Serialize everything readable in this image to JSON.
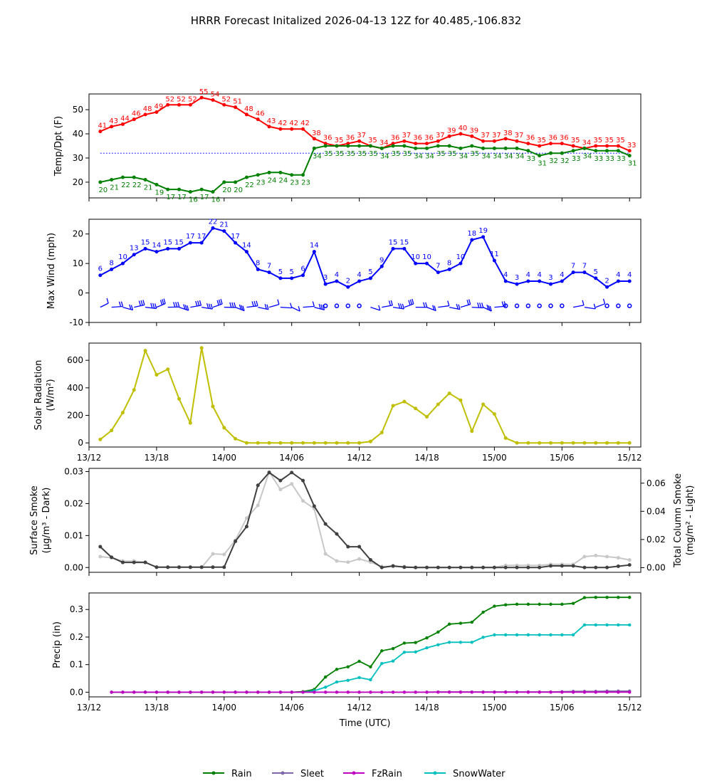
{
  "title": "HRRR Forecast Initalized 2026-04-13 12Z for 40.485,-106.832",
  "x_label": "Time (UTC)",
  "x_ticks": [
    "13/12",
    "13/18",
    "14/00",
    "14/06",
    "14/12",
    "14/18",
    "15/00",
    "15/06",
    "15/12"
  ],
  "colors": {
    "temp": "#ff0000",
    "dewpoint": "#008000",
    "freezing_line": "#0000ff",
    "wind": "#0000ff",
    "solar": "#bfbf00",
    "smoke_surface": "#404040",
    "smoke_column": "#c8c8c8",
    "rain": "#008000",
    "sleet": "#8068a8",
    "fzrain": "#c000c0",
    "snowwater": "#00bfbf"
  },
  "chart_data": [
    {
      "type": "line",
      "id": "temp",
      "ylabel": "Temp/Dpt (F)",
      "x_hours": [
        1,
        2,
        3,
        4,
        5,
        6,
        7,
        8,
        9,
        10,
        11,
        12,
        13,
        14,
        15,
        16,
        17,
        18,
        19,
        20,
        21,
        22,
        23,
        24,
        25,
        26,
        27,
        28,
        29,
        30,
        31,
        32,
        33,
        34,
        35,
        36,
        37,
        38,
        39,
        40,
        41,
        42,
        43,
        44,
        45,
        46,
        47,
        48
      ],
      "ylim": [
        13.5,
        56.5
      ],
      "yticks": [
        20,
        30,
        40,
        50
      ],
      "freezing_line": 32,
      "series": [
        {
          "name": "Temperature",
          "values": [
            41,
            43,
            44,
            46,
            48,
            49,
            52,
            52,
            52,
            55,
            54,
            52,
            51,
            48,
            46,
            43,
            42,
            42,
            42,
            38,
            36,
            35,
            36,
            37,
            35,
            34,
            36,
            37,
            36,
            36,
            37,
            39,
            40,
            39,
            37,
            37,
            38,
            37,
            36,
            35,
            36,
            36,
            35,
            34,
            35,
            35,
            35,
            33
          ]
        },
        {
          "name": "Dewpoint",
          "values": [
            20,
            21,
            22,
            22,
            21,
            19,
            17,
            17,
            16,
            17,
            16,
            20,
            20,
            22,
            23,
            24,
            24,
            23,
            23,
            34,
            35,
            35,
            35,
            35,
            35,
            34,
            35,
            35,
            34,
            34,
            35,
            35,
            34,
            35,
            34,
            34,
            34,
            34,
            33,
            31,
            32,
            32,
            33,
            34,
            33,
            33,
            33,
            31
          ]
        }
      ]
    },
    {
      "type": "line",
      "id": "wind",
      "ylabel": "Max Wind (mph)",
      "x_hours": [
        1,
        2,
        3,
        4,
        5,
        6,
        7,
        8,
        9,
        10,
        11,
        12,
        13,
        14,
        15,
        16,
        17,
        18,
        19,
        20,
        21,
        22,
        23,
        24,
        25,
        26,
        27,
        28,
        29,
        30,
        31,
        32,
        33,
        34,
        35,
        36,
        37,
        38,
        39,
        40,
        41,
        42,
        43,
        44,
        45,
        46,
        47,
        48
      ],
      "ylim": [
        -10,
        25
      ],
      "yticks": [
        -10,
        0,
        10,
        20
      ],
      "series": [
        {
          "name": "Max Wind",
          "values": [
            6,
            8,
            10,
            13,
            15,
            14,
            15,
            15,
            17,
            17,
            22,
            21,
            17,
            14,
            8,
            7,
            5,
            5,
            6,
            14,
            3,
            4,
            2,
            4,
            5,
            9,
            15,
            15,
            10,
            10,
            7,
            8,
            10,
            18,
            19,
            11,
            4,
            3,
            4,
            4,
            3,
            4,
            7,
            7,
            5,
            2,
            4,
            4
          ]
        }
      ],
      "barbs_at": -0.5
    },
    {
      "type": "line",
      "id": "solar",
      "ylabel_line1": "Solar Radiation",
      "ylabel_line2": "(W/m²)",
      "x_hours": [
        1,
        2,
        3,
        4,
        5,
        6,
        7,
        8,
        9,
        10,
        11,
        12,
        13,
        14,
        15,
        16,
        17,
        18,
        19,
        20,
        21,
        22,
        23,
        24,
        25,
        26,
        27,
        28,
        29,
        30,
        31,
        32,
        33,
        34,
        35,
        36,
        37,
        38,
        39,
        40,
        41,
        42,
        43,
        44,
        45,
        46,
        47,
        48
      ],
      "ylim": [
        -30,
        725
      ],
      "yticks": [
        0,
        200,
        400,
        600
      ],
      "series": [
        {
          "name": "Solar Radiation",
          "values": [
            25,
            90,
            220,
            385,
            670,
            495,
            535,
            320,
            145,
            690,
            265,
            110,
            30,
            0,
            0,
            0,
            0,
            0,
            0,
            0,
            0,
            0,
            0,
            0,
            10,
            75,
            270,
            300,
            250,
            190,
            280,
            360,
            310,
            85,
            280,
            210,
            35,
            0,
            0,
            0,
            0,
            0,
            0,
            0,
            0,
            0,
            0,
            0
          ]
        }
      ]
    },
    {
      "type": "line",
      "id": "smoke",
      "ylabel_line1": "Surface Smoke",
      "ylabel_line2": "(μg/m³ - Dark)",
      "ylabel2_line1": "Total Column Smoke",
      "ylabel2_line2": "(mg/m² - Light)",
      "x_hours": [
        1,
        2,
        3,
        4,
        5,
        6,
        7,
        8,
        9,
        10,
        11,
        12,
        13,
        14,
        15,
        16,
        17,
        18,
        19,
        20,
        21,
        22,
        23,
        24,
        25,
        26,
        27,
        28,
        29,
        30,
        31,
        32,
        33,
        34,
        35,
        36,
        37,
        38,
        39,
        40,
        41,
        42,
        43,
        44,
        45,
        46,
        47,
        48
      ],
      "ylim": [
        -0.0015,
        0.031
      ],
      "yticks": [
        "0.00",
        "0.01",
        "0.02",
        "0.03"
      ],
      "ytick_values": [
        0,
        0.01,
        0.02,
        0.03
      ],
      "ylim_right": [
        -0.0033,
        0.0705
      ],
      "yticks_right": [
        "0.00",
        "0.02",
        "0.04",
        "0.06"
      ],
      "ytick_values_right": [
        0,
        0.02,
        0.04,
        0.06
      ],
      "series": [
        {
          "name": "Surface Smoke",
          "axis": "left",
          "values": [
            0.0065,
            0.0032,
            0.0016,
            0.0016,
            0.0016,
            0.0001,
            0.0001,
            0.0001,
            0.0001,
            0.0001,
            0.0001,
            0.0001,
            0.0082,
            0.0128,
            0.0257,
            0.0297,
            0.0272,
            0.0297,
            0.0272,
            0.0192,
            0.0136,
            0.0105,
            0.0065,
            0.0065,
            0.0024,
            0.0,
            0.0005,
            0.0001,
            0.0,
            0.0,
            0.0,
            0.0,
            0.0,
            0.0,
            0.0,
            0.0,
            0.0,
            0.0,
            0.0,
            0.0,
            0.0005,
            0.0005,
            0.0005,
            0.0,
            0.0,
            0.0,
            0.0004,
            0.0008
          ]
        },
        {
          "name": "Total Column Smoke",
          "axis": "right",
          "values": [
            0.0078,
            0.007,
            0.0047,
            0.0047,
            0.0039,
            0.0002,
            0.0002,
            0.0002,
            0.0002,
            0.0002,
            0.0098,
            0.0094,
            0.0195,
            0.0352,
            0.0442,
            0.068,
            0.0555,
            0.0595,
            0.0474,
            0.0419,
            0.0098,
            0.0047,
            0.0039,
            0.0062,
            0.0039,
            0.0008,
            0.0008,
            0.0008,
            0.0002,
            0.0002,
            0.0002,
            0.0002,
            0.0002,
            0.0002,
            0.0002,
            0.0002,
            0.0016,
            0.0016,
            0.0016,
            0.0016,
            0.0023,
            0.0023,
            0.0023,
            0.0078,
            0.0086,
            0.0078,
            0.007,
            0.0055
          ]
        }
      ]
    },
    {
      "type": "line",
      "id": "precip",
      "ylabel": "Precip (in)",
      "x_hours": [
        2,
        3,
        4,
        5,
        6,
        7,
        8,
        9,
        10,
        11,
        12,
        13,
        14,
        15,
        16,
        17,
        18,
        19,
        20,
        21,
        22,
        23,
        24,
        25,
        26,
        27,
        28,
        29,
        30,
        31,
        32,
        33,
        34,
        35,
        36,
        37,
        38,
        39,
        40,
        41,
        42,
        43,
        44,
        45,
        46,
        47,
        48
      ],
      "ylim": [
        -0.017,
        0.36
      ],
      "yticks": [
        "0.0",
        "0.1",
        "0.2",
        "0.3"
      ],
      "ytick_values": [
        0,
        0.1,
        0.2,
        0.3
      ],
      "series": [
        {
          "name": "Rain",
          "values": [
            0,
            0,
            0,
            0,
            0,
            0,
            0,
            0,
            0,
            0,
            0,
            0,
            0,
            0,
            0,
            0,
            0,
            0.002,
            0.01,
            0.055,
            0.083,
            0.092,
            0.112,
            0.092,
            0.15,
            0.158,
            0.178,
            0.18,
            0.197,
            0.218,
            0.247,
            0.25,
            0.254,
            0.29,
            0.312,
            0.317,
            0.319,
            0.319,
            0.319,
            0.319,
            0.319,
            0.322,
            0.343,
            0.344,
            0.344,
            0.344,
            0.344
          ]
        },
        {
          "name": "Sleet",
          "values": [
            0,
            0,
            0,
            0,
            0,
            0,
            0,
            0,
            0,
            0,
            0,
            0,
            0,
            0,
            0,
            0,
            0,
            0,
            0,
            0,
            0,
            0,
            0,
            0,
            0,
            0,
            0,
            0,
            0,
            0.001,
            0.001,
            0.001,
            0.001,
            0.001,
            0.001,
            0.001,
            0.001,
            0.001,
            0.001,
            0.001,
            0.002,
            0.003,
            0.003,
            0.003,
            0.004,
            0.004,
            0.004
          ]
        },
        {
          "name": "FzRain",
          "values": [
            0,
            0,
            0,
            0,
            0,
            0,
            0,
            0,
            0,
            0,
            0,
            0,
            0,
            0,
            0,
            0,
            0,
            0,
            0,
            0,
            0,
            0,
            0,
            0,
            0,
            0,
            0,
            0,
            0,
            0,
            0,
            0,
            0,
            0,
            0,
            0,
            0,
            0,
            0,
            0,
            0,
            0,
            0,
            0,
            0,
            0,
            0
          ]
        },
        {
          "name": "SnowWater",
          "values": [
            0,
            0,
            0,
            0,
            0,
            0,
            0,
            0,
            0,
            0,
            0,
            0,
            0,
            0,
            0,
            0,
            0,
            0,
            0.005,
            0.018,
            0.037,
            0.043,
            0.053,
            0.045,
            0.104,
            0.113,
            0.145,
            0.146,
            0.161,
            0.172,
            0.181,
            0.181,
            0.181,
            0.199,
            0.208,
            0.208,
            0.208,
            0.208,
            0.208,
            0.208,
            0.208,
            0.208,
            0.244,
            0.244,
            0.244,
            0.244,
            0.244
          ]
        }
      ]
    }
  ],
  "legend": [
    "Rain",
    "Sleet",
    "FzRain",
    "SnowWater"
  ]
}
